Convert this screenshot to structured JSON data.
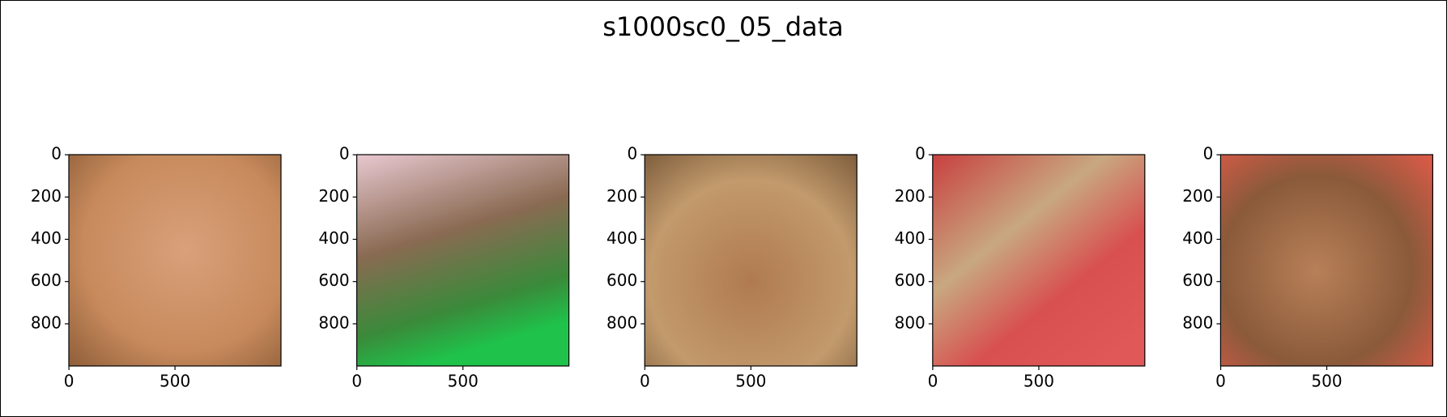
{
  "title": "s1000sc0_05_data",
  "chart_data": [
    {
      "type": "image",
      "xlim": [
        -0.5,
        999.5
      ],
      "ylim": [
        999.5,
        -0.5
      ],
      "xticks": [
        0,
        500
      ],
      "yticks": [
        0,
        200,
        400,
        600,
        800
      ]
    },
    {
      "type": "image",
      "xlim": [
        -0.5,
        999.5
      ],
      "ylim": [
        999.5,
        -0.5
      ],
      "xticks": [
        0,
        500
      ],
      "yticks": [
        0,
        200,
        400,
        600,
        800
      ]
    },
    {
      "type": "image",
      "xlim": [
        -0.5,
        999.5
      ],
      "ylim": [
        999.5,
        -0.5
      ],
      "xticks": [
        0,
        500
      ],
      "yticks": [
        0,
        200,
        400,
        600,
        800
      ]
    },
    {
      "type": "image",
      "xlim": [
        -0.5,
        999.5
      ],
      "ylim": [
        999.5,
        -0.5
      ],
      "xticks": [
        0,
        500
      ],
      "yticks": [
        0,
        200,
        400,
        600,
        800
      ]
    },
    {
      "type": "image",
      "xlim": [
        -0.5,
        999.5
      ],
      "ylim": [
        999.5,
        -0.5
      ],
      "xticks": [
        0,
        500
      ],
      "yticks": [
        0,
        200,
        400,
        600,
        800
      ]
    }
  ]
}
